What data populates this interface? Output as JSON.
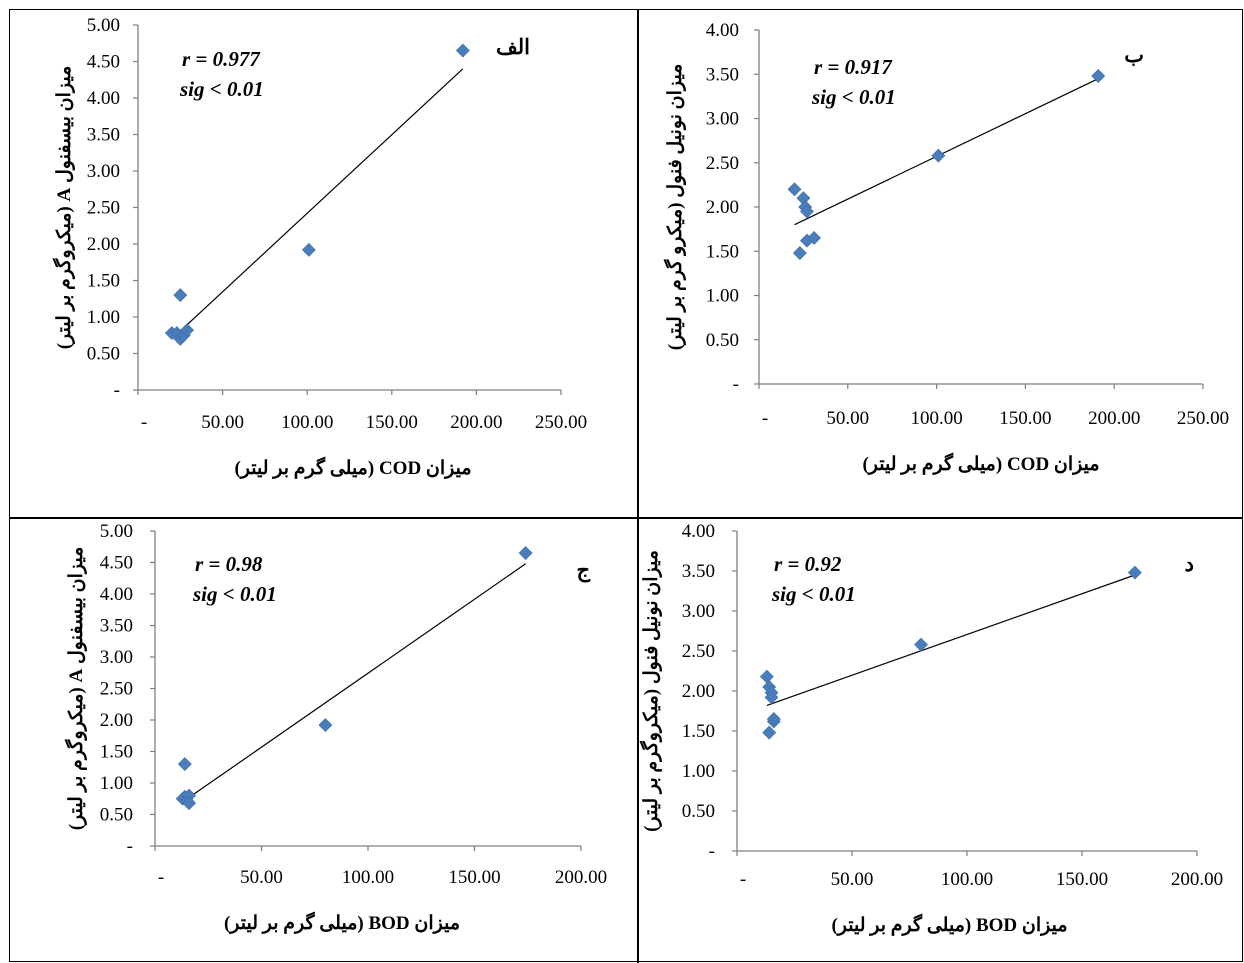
{
  "chart_data": [
    {
      "type": "scatter",
      "panel_label": "الف",
      "xlabel": "میزان COD (میلی گرم بر لیتر)",
      "ylabel": "میزان بیسفنول A (میکروگرم بر لیتر)",
      "xlim": [
        0,
        250
      ],
      "ylim": [
        0,
        5
      ],
      "x_ticks": [
        "-",
        "50.00",
        "100.00",
        "150.00",
        "200.00",
        "250.00"
      ],
      "y_ticks": [
        "-",
        "0.50",
        "1.00",
        "1.50",
        "2.00",
        "2.50",
        "3.00",
        "3.50",
        "4.00",
        "4.50",
        "5.00"
      ],
      "r_text": "r = 0.977",
      "sig_text": "sig < 0.01",
      "color": "#4a7ebb",
      "points": [
        [
          20,
          0.78
        ],
        [
          23,
          0.78
        ],
        [
          25,
          1.3
        ],
        [
          25,
          0.7
        ],
        [
          27,
          0.75
        ],
        [
          29,
          0.82
        ],
        [
          101,
          1.92
        ],
        [
          192,
          4.65
        ]
      ],
      "trendline": [
        [
          20,
          0.7
        ],
        [
          192,
          4.4
        ]
      ]
    },
    {
      "type": "scatter",
      "panel_label": "ب",
      "xlabel": "میزان COD (میلی گرم بر لیتر)",
      "ylabel": "میزان نونیل فنول (میکرو گرم بر لیتر)",
      "xlim": [
        0,
        250
      ],
      "ylim": [
        0,
        4
      ],
      "x_ticks": [
        "-",
        "50.00",
        "100.00",
        "150.00",
        "200.00",
        "250.00"
      ],
      "y_ticks": [
        "-",
        "0.50",
        "1.00",
        "1.50",
        "2.00",
        "2.50",
        "3.00",
        "3.50",
        "4.00"
      ],
      "r_text": "r = 0.917",
      "sig_text": "sig < 0.01",
      "color": "#4a7ebb",
      "points": [
        [
          20,
          2.2
        ],
        [
          23,
          1.48
        ],
        [
          25,
          2.1
        ],
        [
          26,
          2.0
        ],
        [
          27,
          1.95
        ],
        [
          27,
          1.62
        ],
        [
          31,
          1.65
        ],
        [
          101,
          2.58
        ],
        [
          191,
          3.48
        ]
      ],
      "trendline": [
        [
          20,
          1.8
        ],
        [
          191,
          3.45
        ]
      ]
    },
    {
      "type": "scatter",
      "panel_label": "ج",
      "xlabel": "میزان BOD (میلی گرم بر لیتر)",
      "ylabel": "میزان بیسفنول A (میکروگرم بر لیتر)",
      "xlim": [
        0,
        200
      ],
      "ylim": [
        0,
        5
      ],
      "x_ticks": [
        "-",
        "50.00",
        "100.00",
        "150.00",
        "200.00"
      ],
      "y_ticks": [
        "-",
        "0.50",
        "1.00",
        "1.50",
        "2.00",
        "2.50",
        "3.00",
        "3.50",
        "4.00",
        "4.50",
        "5.00"
      ],
      "r_text": "r = 0.98",
      "sig_text": "sig < 0.01",
      "color": "#4a7ebb",
      "points": [
        [
          13,
          0.75
        ],
        [
          14,
          1.3
        ],
        [
          14,
          0.78
        ],
        [
          15,
          0.72
        ],
        [
          16,
          0.8
        ],
        [
          16,
          0.68
        ],
        [
          80,
          1.92
        ],
        [
          174,
          4.65
        ]
      ],
      "trendline": [
        [
          13,
          0.7
        ],
        [
          174,
          4.48
        ]
      ]
    },
    {
      "type": "scatter",
      "panel_label": "د",
      "xlabel": "میزان BOD (میلی گرم بر لیتر)",
      "ylabel": "میزان نونیل فنول (میکروگرم بر لیتر)",
      "xlim": [
        0,
        200
      ],
      "ylim": [
        0,
        4
      ],
      "x_ticks": [
        "-",
        "50.00",
        "100.00",
        "150.00",
        "200.00"
      ],
      "y_ticks": [
        "-",
        "0.50",
        "1.00",
        "1.50",
        "2.00",
        "2.50",
        "3.00",
        "3.50",
        "4.00"
      ],
      "r_text": "r = 0.92",
      "sig_text": "sig < 0.01",
      "color": "#4a7ebb",
      "points": [
        [
          13,
          2.18
        ],
        [
          14,
          1.48
        ],
        [
          14,
          2.05
        ],
        [
          15,
          1.98
        ],
        [
          15,
          1.92
        ],
        [
          16,
          1.62
        ],
        [
          16,
          1.65
        ],
        [
          80,
          2.58
        ],
        [
          173,
          3.48
        ]
      ],
      "trendline": [
        [
          13,
          1.82
        ],
        [
          173,
          3.45
        ]
      ]
    }
  ]
}
